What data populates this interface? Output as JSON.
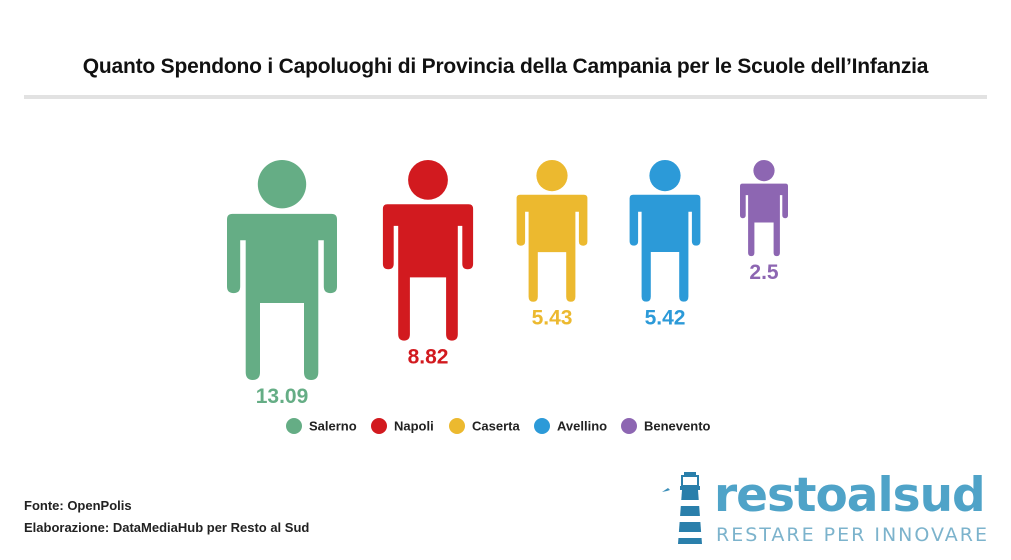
{
  "title": "Quanto Spendono i Capoluoghi di Provincia della Campania per le Scuole dell’Infanzia",
  "chart_data": {
    "type": "pictograph",
    "title": "Quanto Spendono i Capoluoghi di Provincia della Campania per le Scuole dell’Infanzia",
    "categories": [
      "Salerno",
      "Napoli",
      "Caserta",
      "Avellino",
      "Benevento"
    ],
    "values": [
      13.09,
      8.82,
      5.43,
      5.42,
      2.5
    ],
    "value_labels": [
      "13.09",
      "8.82",
      "5.43",
      "5.42",
      "2.5"
    ],
    "colors": [
      "#65ad85",
      "#d21a1f",
      "#ecb92f",
      "#2c9ad8",
      "#8d66b2"
    ],
    "legend_position": "bottom",
    "grid": false
  },
  "footer": {
    "source": "Fonte: OpenPolis",
    "credit": "Elaborazione: DataMediaHub per Resto al Sud"
  },
  "brand": {
    "name": "restoalsud",
    "tagline": "RESTARE PER INNOVARE",
    "icon": "lighthouse-icon"
  }
}
